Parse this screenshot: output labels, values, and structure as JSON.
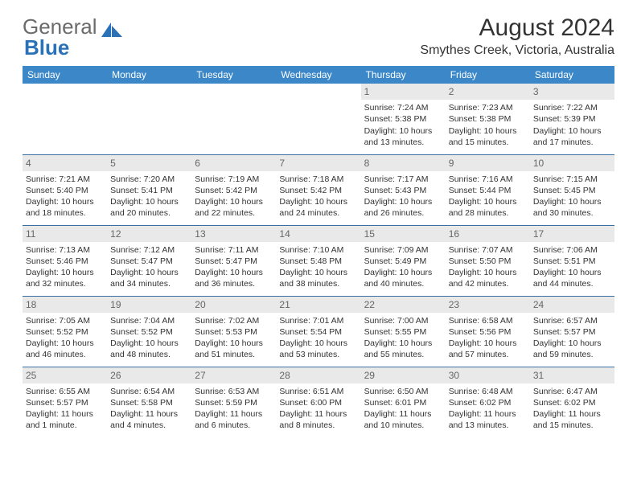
{
  "logo": {
    "part1": "General",
    "part2": "Blue"
  },
  "title": "August 2024",
  "location": "Smythes Creek, Victoria, Australia",
  "colors": {
    "header_bg": "#3b87c8",
    "daynum_bg": "#e9e9e9",
    "rule": "#3b6fa3"
  },
  "weekdays": [
    "Sunday",
    "Monday",
    "Tuesday",
    "Wednesday",
    "Thursday",
    "Friday",
    "Saturday"
  ],
  "weeks": [
    [
      {
        "n": "",
        "sunrise": "",
        "sunset": "",
        "daylight": ""
      },
      {
        "n": "",
        "sunrise": "",
        "sunset": "",
        "daylight": ""
      },
      {
        "n": "",
        "sunrise": "",
        "sunset": "",
        "daylight": ""
      },
      {
        "n": "",
        "sunrise": "",
        "sunset": "",
        "daylight": ""
      },
      {
        "n": "1",
        "sunrise": "Sunrise: 7:24 AM",
        "sunset": "Sunset: 5:38 PM",
        "daylight": "Daylight: 10 hours and 13 minutes."
      },
      {
        "n": "2",
        "sunrise": "Sunrise: 7:23 AM",
        "sunset": "Sunset: 5:38 PM",
        "daylight": "Daylight: 10 hours and 15 minutes."
      },
      {
        "n": "3",
        "sunrise": "Sunrise: 7:22 AM",
        "sunset": "Sunset: 5:39 PM",
        "daylight": "Daylight: 10 hours and 17 minutes."
      }
    ],
    [
      {
        "n": "4",
        "sunrise": "Sunrise: 7:21 AM",
        "sunset": "Sunset: 5:40 PM",
        "daylight": "Daylight: 10 hours and 18 minutes."
      },
      {
        "n": "5",
        "sunrise": "Sunrise: 7:20 AM",
        "sunset": "Sunset: 5:41 PM",
        "daylight": "Daylight: 10 hours and 20 minutes."
      },
      {
        "n": "6",
        "sunrise": "Sunrise: 7:19 AM",
        "sunset": "Sunset: 5:42 PM",
        "daylight": "Daylight: 10 hours and 22 minutes."
      },
      {
        "n": "7",
        "sunrise": "Sunrise: 7:18 AM",
        "sunset": "Sunset: 5:42 PM",
        "daylight": "Daylight: 10 hours and 24 minutes."
      },
      {
        "n": "8",
        "sunrise": "Sunrise: 7:17 AM",
        "sunset": "Sunset: 5:43 PM",
        "daylight": "Daylight: 10 hours and 26 minutes."
      },
      {
        "n": "9",
        "sunrise": "Sunrise: 7:16 AM",
        "sunset": "Sunset: 5:44 PM",
        "daylight": "Daylight: 10 hours and 28 minutes."
      },
      {
        "n": "10",
        "sunrise": "Sunrise: 7:15 AM",
        "sunset": "Sunset: 5:45 PM",
        "daylight": "Daylight: 10 hours and 30 minutes."
      }
    ],
    [
      {
        "n": "11",
        "sunrise": "Sunrise: 7:13 AM",
        "sunset": "Sunset: 5:46 PM",
        "daylight": "Daylight: 10 hours and 32 minutes."
      },
      {
        "n": "12",
        "sunrise": "Sunrise: 7:12 AM",
        "sunset": "Sunset: 5:47 PM",
        "daylight": "Daylight: 10 hours and 34 minutes."
      },
      {
        "n": "13",
        "sunrise": "Sunrise: 7:11 AM",
        "sunset": "Sunset: 5:47 PM",
        "daylight": "Daylight: 10 hours and 36 minutes."
      },
      {
        "n": "14",
        "sunrise": "Sunrise: 7:10 AM",
        "sunset": "Sunset: 5:48 PM",
        "daylight": "Daylight: 10 hours and 38 minutes."
      },
      {
        "n": "15",
        "sunrise": "Sunrise: 7:09 AM",
        "sunset": "Sunset: 5:49 PM",
        "daylight": "Daylight: 10 hours and 40 minutes."
      },
      {
        "n": "16",
        "sunrise": "Sunrise: 7:07 AM",
        "sunset": "Sunset: 5:50 PM",
        "daylight": "Daylight: 10 hours and 42 minutes."
      },
      {
        "n": "17",
        "sunrise": "Sunrise: 7:06 AM",
        "sunset": "Sunset: 5:51 PM",
        "daylight": "Daylight: 10 hours and 44 minutes."
      }
    ],
    [
      {
        "n": "18",
        "sunrise": "Sunrise: 7:05 AM",
        "sunset": "Sunset: 5:52 PM",
        "daylight": "Daylight: 10 hours and 46 minutes."
      },
      {
        "n": "19",
        "sunrise": "Sunrise: 7:04 AM",
        "sunset": "Sunset: 5:52 PM",
        "daylight": "Daylight: 10 hours and 48 minutes."
      },
      {
        "n": "20",
        "sunrise": "Sunrise: 7:02 AM",
        "sunset": "Sunset: 5:53 PM",
        "daylight": "Daylight: 10 hours and 51 minutes."
      },
      {
        "n": "21",
        "sunrise": "Sunrise: 7:01 AM",
        "sunset": "Sunset: 5:54 PM",
        "daylight": "Daylight: 10 hours and 53 minutes."
      },
      {
        "n": "22",
        "sunrise": "Sunrise: 7:00 AM",
        "sunset": "Sunset: 5:55 PM",
        "daylight": "Daylight: 10 hours and 55 minutes."
      },
      {
        "n": "23",
        "sunrise": "Sunrise: 6:58 AM",
        "sunset": "Sunset: 5:56 PM",
        "daylight": "Daylight: 10 hours and 57 minutes."
      },
      {
        "n": "24",
        "sunrise": "Sunrise: 6:57 AM",
        "sunset": "Sunset: 5:57 PM",
        "daylight": "Daylight: 10 hours and 59 minutes."
      }
    ],
    [
      {
        "n": "25",
        "sunrise": "Sunrise: 6:55 AM",
        "sunset": "Sunset: 5:57 PM",
        "daylight": "Daylight: 11 hours and 1 minute."
      },
      {
        "n": "26",
        "sunrise": "Sunrise: 6:54 AM",
        "sunset": "Sunset: 5:58 PM",
        "daylight": "Daylight: 11 hours and 4 minutes."
      },
      {
        "n": "27",
        "sunrise": "Sunrise: 6:53 AM",
        "sunset": "Sunset: 5:59 PM",
        "daylight": "Daylight: 11 hours and 6 minutes."
      },
      {
        "n": "28",
        "sunrise": "Sunrise: 6:51 AM",
        "sunset": "Sunset: 6:00 PM",
        "daylight": "Daylight: 11 hours and 8 minutes."
      },
      {
        "n": "29",
        "sunrise": "Sunrise: 6:50 AM",
        "sunset": "Sunset: 6:01 PM",
        "daylight": "Daylight: 11 hours and 10 minutes."
      },
      {
        "n": "30",
        "sunrise": "Sunrise: 6:48 AM",
        "sunset": "Sunset: 6:02 PM",
        "daylight": "Daylight: 11 hours and 13 minutes."
      },
      {
        "n": "31",
        "sunrise": "Sunrise: 6:47 AM",
        "sunset": "Sunset: 6:02 PM",
        "daylight": "Daylight: 11 hours and 15 minutes."
      }
    ]
  ]
}
